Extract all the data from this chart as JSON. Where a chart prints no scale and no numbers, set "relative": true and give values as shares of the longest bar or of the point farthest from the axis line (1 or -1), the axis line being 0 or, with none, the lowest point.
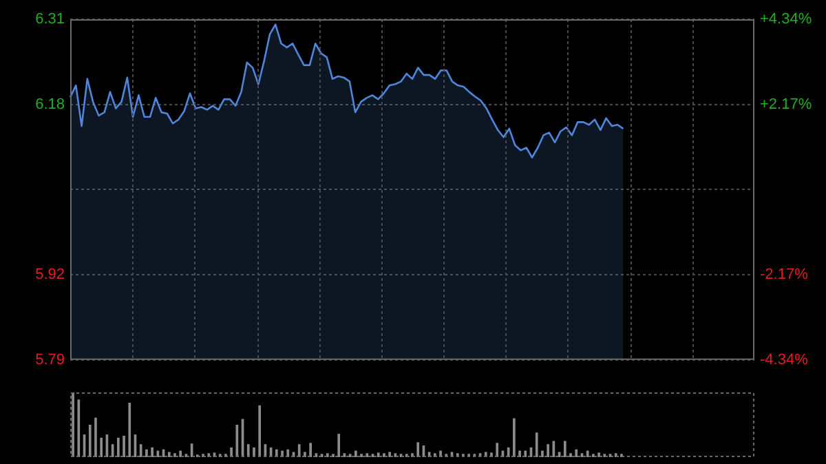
{
  "chart_data": [
    {
      "type": "area",
      "color": "#4f86dc",
      "categories": [
        null,
        null,
        null,
        null,
        null,
        null,
        null,
        null,
        null,
        null,
        null,
        null,
        null,
        null,
        null,
        null,
        null,
        null,
        null,
        null,
        null,
        null,
        null,
        null,
        null,
        null,
        null,
        null,
        null,
        null,
        null,
        null,
        null,
        null,
        null,
        null,
        null,
        null,
        null,
        null,
        null,
        null,
        null,
        null,
        null,
        null,
        null,
        null,
        null,
        null,
        null,
        null,
        null,
        null,
        null,
        null,
        null,
        null,
        null,
        null,
        null,
        null,
        null,
        null,
        null,
        null,
        null,
        null,
        null,
        null,
        null,
        null,
        null,
        null,
        null,
        null,
        null,
        null,
        null,
        null,
        null,
        null,
        null,
        null,
        null,
        null,
        null,
        null,
        null,
        null,
        null,
        null,
        null,
        null,
        null,
        null,
        null,
        null,
        null,
        null,
        null,
        null,
        null,
        null,
        null,
        null,
        null,
        null,
        null,
        null,
        null,
        null,
        null,
        null,
        null,
        null,
        null,
        null,
        null,
        null,
        null
      ],
      "values": [
        6.191,
        6.209,
        6.147,
        6.219,
        6.184,
        6.163,
        6.168,
        6.199,
        6.174,
        6.184,
        6.221,
        6.161,
        6.194,
        6.161,
        6.161,
        6.19,
        6.168,
        6.166,
        6.151,
        6.157,
        6.17,
        6.197,
        6.174,
        6.176,
        6.172,
        6.178,
        6.172,
        6.188,
        6.188,
        6.178,
        6.199,
        6.244,
        6.236,
        6.211,
        6.246,
        6.287,
        6.302,
        6.273,
        6.267,
        6.273,
        6.256,
        6.24,
        6.24,
        6.273,
        6.258,
        6.252,
        6.219,
        6.223,
        6.221,
        6.215,
        6.168,
        6.184,
        6.19,
        6.194,
        6.188,
        6.197,
        6.209,
        6.211,
        6.215,
        6.227,
        6.219,
        6.236,
        6.225,
        6.225,
        6.219,
        6.232,
        6.232,
        6.215,
        6.209,
        6.207,
        6.199,
        6.192,
        6.186,
        6.174,
        6.157,
        6.141,
        6.13,
        6.143,
        6.118,
        6.11,
        6.114,
        6.099,
        6.114,
        6.133,
        6.137,
        6.122,
        6.139,
        6.145,
        6.133,
        6.153,
        6.153,
        6.149,
        6.157,
        6.141,
        6.159,
        6.147,
        6.149,
        6.143,
        null,
        null,
        null,
        null,
        null,
        null,
        null,
        null,
        null,
        null,
        null,
        null,
        null,
        null,
        null,
        null,
        null,
        null,
        null,
        null,
        null,
        null,
        null
      ],
      "ylim": [
        5.79,
        6.31
      ],
      "yticks": [
        5.79,
        5.92,
        {
          "value": 6.05,
          "label": null
        },
        6.18,
        6.31
      ],
      "y2lim": [
        -4.34,
        4.34
      ],
      "y2ticks": [
        {
          "value": -4.34,
          "label": "-4.34%"
        },
        {
          "value": -2.17,
          "label": "-2.17%"
        },
        {
          "value": 2.17,
          "label": "+2.17%"
        },
        {
          "value": 4.34,
          "label": "+4.34%"
        }
      ],
      "grid": true
    },
    {
      "type": "bar",
      "color": "#8c8c8c",
      "relative": true,
      "categories": [
        null,
        null,
        null,
        null,
        null,
        null,
        null,
        null,
        null,
        null,
        null,
        null,
        null,
        null,
        null,
        null,
        null,
        null,
        null,
        null,
        null,
        null,
        null,
        null,
        null,
        null,
        null,
        null,
        null,
        null,
        null,
        null,
        null,
        null,
        null,
        null,
        null,
        null,
        null,
        null,
        null,
        null,
        null,
        null,
        null,
        null,
        null,
        null,
        null,
        null,
        null,
        null,
        null,
        null,
        null,
        null,
        null,
        null,
        null,
        null,
        null,
        null,
        null,
        null,
        null,
        null,
        null,
        null,
        null,
        null,
        null,
        null,
        null,
        null,
        null,
        null,
        null,
        null,
        null,
        null,
        null,
        null,
        null,
        null,
        null,
        null,
        null,
        null,
        null,
        null,
        null,
        null,
        null,
        null,
        null,
        null,
        null,
        null,
        null,
        null,
        null,
        null,
        null,
        null,
        null,
        null,
        null,
        null,
        null,
        null,
        null,
        null,
        null,
        null,
        null,
        null,
        null,
        null,
        null,
        null,
        null
      ],
      "values": [
        1,
        0.89,
        0.35,
        0.5,
        0.61,
        0.3,
        0.35,
        0.2,
        0.3,
        0.33,
        0.84,
        0.35,
        0.2,
        0.12,
        0.15,
        0.1,
        0.12,
        0.08,
        0.06,
        0.1,
        0.05,
        0.21,
        0.04,
        0.05,
        0.06,
        0.07,
        0.05,
        0.05,
        0.15,
        0.5,
        0.59,
        0.2,
        0.15,
        0.8,
        0.2,
        0.15,
        0.12,
        0.1,
        0.12,
        0.08,
        0.2,
        0.08,
        0.22,
        0.06,
        0.05,
        0.06,
        0.05,
        0.36,
        0.06,
        0.05,
        0.1,
        0.05,
        0.06,
        0.05,
        0.07,
        0.06,
        0.08,
        0.06,
        0.05,
        0.05,
        0.06,
        0.23,
        0.18,
        0.08,
        0.06,
        0.1,
        0.05,
        0.08,
        0.06,
        0.05,
        0.05,
        0.05,
        0.06,
        0.08,
        0.07,
        0.22,
        0.1,
        0.15,
        0.6,
        0.1,
        0.1,
        0.15,
        0.38,
        0.1,
        0.2,
        0.25,
        0.08,
        0.25,
        0.06,
        0.12,
        0.06,
        0.1,
        0.05,
        0.07,
        0.05,
        0.05,
        0.06,
        0.05,
        null,
        null,
        null,
        null,
        null,
        null,
        null,
        null,
        null,
        null,
        null,
        null,
        null,
        null,
        null,
        null,
        null,
        null,
        null,
        null,
        null,
        null,
        null
      ]
    }
  ]
}
